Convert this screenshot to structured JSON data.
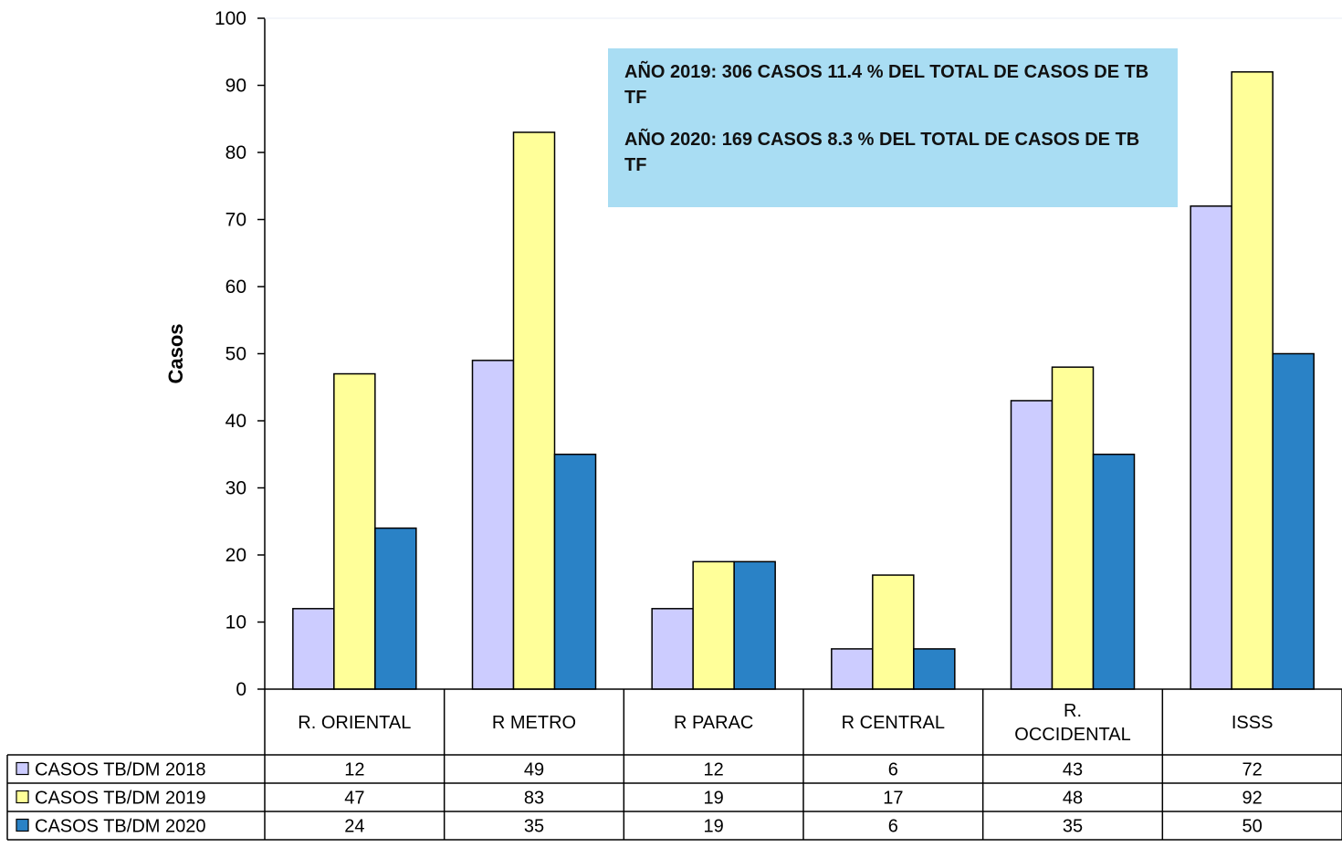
{
  "chart_data": {
    "type": "bar",
    "categories": [
      "R. ORIENTAL",
      "R METRO",
      "R PARAC",
      "R CENTRAL",
      "R. OCCIDENTAL",
      "ISSS"
    ],
    "category_lines": [
      [
        "R. ORIENTAL"
      ],
      [
        "R METRO"
      ],
      [
        "R PARAC"
      ],
      [
        "R CENTRAL"
      ],
      [
        "R.",
        "OCCIDENTAL"
      ],
      [
        "ISSS"
      ]
    ],
    "series": [
      {
        "name": "CASOS TB/DM 2018",
        "color": "#ccccff",
        "values": [
          12,
          49,
          12,
          6,
          43,
          72
        ]
      },
      {
        "name": "CASOS TB/DM 2019",
        "color": "#ffff99",
        "values": [
          47,
          83,
          19,
          17,
          48,
          92
        ]
      },
      {
        "name": "CASOS TB/DM 2020",
        "color": "#2a82c6",
        "values": [
          24,
          35,
          19,
          6,
          35,
          50
        ]
      }
    ],
    "ylabel": "Casos",
    "ylim": [
      0,
      100
    ],
    "yticks": [
      0,
      10,
      20,
      30,
      40,
      50,
      60,
      70,
      80,
      90,
      100
    ],
    "grid": false,
    "legend_placement": "data-table",
    "annotations": [
      "AÑO 2019:  306  CASOS  11.4 % DEL TOTAL DE CASOS DE TB TF",
      "AÑO 2020: 169 CASOS 8.3 % DEL TOTAL DE CASOS DE TB TF"
    ]
  }
}
